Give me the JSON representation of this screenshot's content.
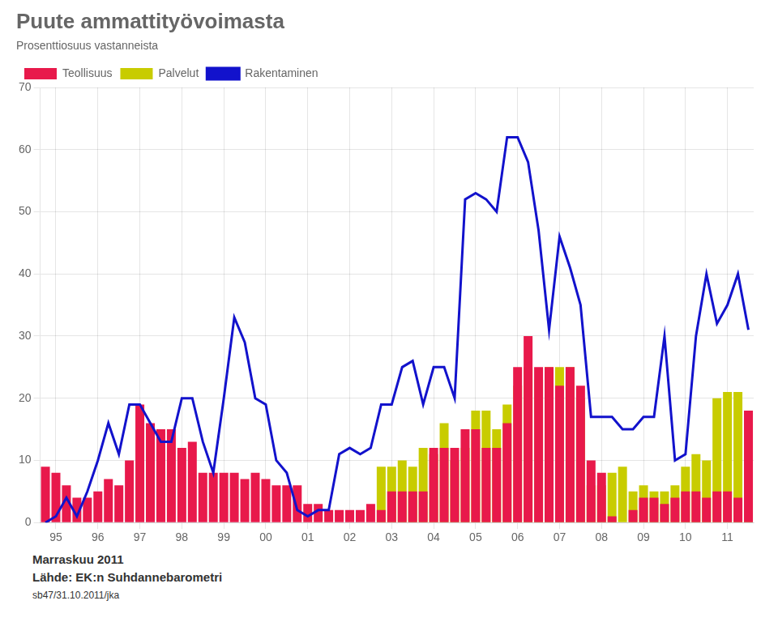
{
  "chart_data": {
    "type": "bar",
    "title": "Puute ammattityövoimasta",
    "subtitle": "Prosenttiosuus vastanneista",
    "annotations": [
      "Marraskuu 2011",
      "Lähde: EK:n Suhdannebarometri",
      "sb47/31.10.2011/jka"
    ],
    "categories": [
      null,
      "95",
      null,
      null,
      null,
      "96",
      null,
      null,
      null,
      "97",
      null,
      null,
      null,
      "98",
      null,
      null,
      null,
      "99",
      null,
      null,
      null,
      "00",
      null,
      null,
      null,
      "01",
      null,
      null,
      null,
      "02",
      null,
      null,
      null,
      "03",
      null,
      null,
      null,
      "04",
      null,
      null,
      null,
      "05",
      null,
      null,
      null,
      "06",
      null,
      null,
      null,
      "07",
      null,
      null,
      null,
      "08",
      null,
      null,
      null,
      "09",
      null,
      null,
      null,
      "10",
      null,
      null,
      null,
      "11",
      null,
      null
    ],
    "series": [
      {
        "name": "Teollisuus",
        "type": "bar",
        "color": "#e8194b",
        "values": [
          9,
          8,
          6,
          4,
          4,
          5,
          7,
          6,
          10,
          19,
          16,
          15,
          15,
          12,
          13,
          8,
          8,
          8,
          8,
          7,
          8,
          7,
          6,
          6,
          6,
          3,
          3,
          2,
          2,
          2,
          2,
          3,
          2,
          5,
          5,
          5,
          5,
          12,
          12,
          12,
          15,
          15,
          12,
          12,
          16,
          25,
          30,
          25,
          25,
          22,
          25,
          22,
          10,
          8,
          1,
          0,
          2,
          4,
          4,
          3,
          4,
          5,
          5,
          4,
          5,
          5,
          4,
          18
        ]
      },
      {
        "name": "Palvelut",
        "type": "bar",
        "color": "#c8cc00",
        "values": [
          0,
          0,
          0,
          0,
          0,
          0,
          0,
          0,
          0,
          0,
          0,
          0,
          0,
          0,
          0,
          0,
          0,
          0,
          0,
          0,
          0,
          0,
          0,
          0,
          0,
          0,
          0,
          0,
          0,
          0,
          0,
          0,
          9,
          9,
          10,
          9,
          12,
          11,
          16,
          10,
          12,
          18,
          18,
          15,
          19,
          22,
          25,
          23,
          25,
          25,
          25,
          20,
          6,
          6,
          8,
          9,
          5,
          6,
          5,
          5,
          6,
          9,
          11,
          10,
          20,
          21,
          21,
          18
        ]
      },
      {
        "name": "Rakentaminen",
        "type": "line",
        "color": "#1212cc",
        "values": [
          0,
          1,
          4,
          1,
          5,
          10,
          16,
          11,
          19,
          19,
          16,
          13,
          13,
          20,
          20,
          13,
          8,
          20,
          33,
          29,
          20,
          19,
          10,
          8,
          2,
          1,
          2,
          2,
          11,
          12,
          11,
          12,
          19,
          19,
          25,
          26,
          19,
          25,
          25,
          20,
          52,
          53,
          52,
          50,
          62,
          62,
          58,
          47,
          31,
          46,
          41,
          35,
          17,
          17,
          17,
          15,
          15,
          17,
          17,
          30,
          10,
          11,
          30,
          40,
          32,
          35,
          40,
          31
        ]
      }
    ],
    "ylim": [
      0,
      70
    ],
    "yticks": [
      0,
      10,
      20,
      30,
      40,
      50,
      60,
      70
    ],
    "grid": true,
    "legend": "upper left"
  }
}
